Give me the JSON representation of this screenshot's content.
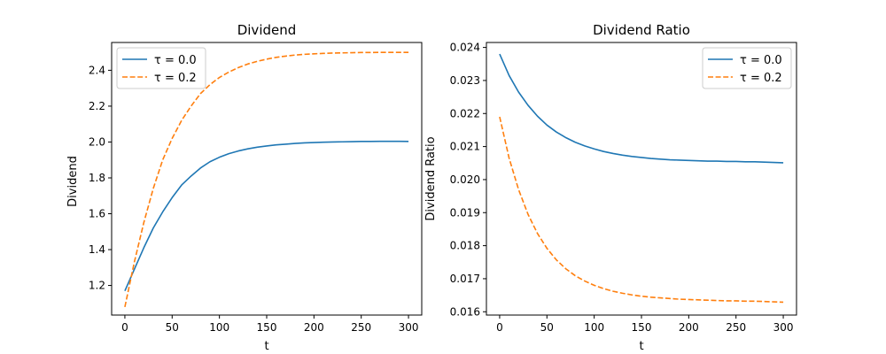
{
  "chart_data": [
    {
      "type": "line",
      "title": "Dividend",
      "xlabel": "t",
      "ylabel": "Dividend",
      "xlim": [
        -14,
        314
      ],
      "ylim": [
        1.035,
        2.555
      ],
      "xticks": [
        0,
        50,
        100,
        150,
        200,
        250,
        300
      ],
      "yticks": [
        1.2,
        1.4,
        1.6,
        1.8,
        2.0,
        2.2,
        2.4
      ],
      "ytick_labels": [
        "1.2",
        "1.4",
        "1.6",
        "1.8",
        "2.0",
        "2.2",
        "2.4"
      ],
      "legend_position": "top-left",
      "grid": false,
      "x": [
        0,
        10,
        20,
        30,
        40,
        50,
        60,
        70,
        80,
        90,
        100,
        110,
        120,
        130,
        140,
        150,
        160,
        170,
        180,
        190,
        200,
        210,
        220,
        230,
        240,
        250,
        260,
        270,
        280,
        290,
        300
      ],
      "series": [
        {
          "name": "τ = 0.0",
          "color": "#1f77b4",
          "dash": "solid",
          "values": [
            1.17,
            1.29,
            1.41,
            1.52,
            1.61,
            1.69,
            1.76,
            1.81,
            1.855,
            1.89,
            1.915,
            1.935,
            1.95,
            1.962,
            1.971,
            1.978,
            1.984,
            1.988,
            1.992,
            1.995,
            1.997,
            1.999,
            2.0,
            2.001,
            2.002,
            2.003,
            2.003,
            2.004,
            2.004,
            2.004,
            2.003
          ]
        },
        {
          "name": "τ = 0.2",
          "color": "#ff7f0e",
          "dash": "dashed",
          "values": [
            1.08,
            1.33,
            1.55,
            1.74,
            1.9,
            2.02,
            2.12,
            2.2,
            2.27,
            2.32,
            2.36,
            2.39,
            2.415,
            2.435,
            2.45,
            2.462,
            2.472,
            2.479,
            2.485,
            2.489,
            2.492,
            2.494,
            2.496,
            2.497,
            2.498,
            2.499,
            2.499,
            2.5,
            2.5,
            2.5,
            2.5
          ]
        }
      ]
    },
    {
      "type": "line",
      "title": "Dividend Ratio",
      "xlabel": "t",
      "ylabel": "Dividend Ratio",
      "xlim": [
        -14,
        314
      ],
      "ylim": [
        0.0159,
        0.02415
      ],
      "xticks": [
        0,
        50,
        100,
        150,
        200,
        250,
        300
      ],
      "yticks": [
        0.016,
        0.017,
        0.018,
        0.019,
        0.02,
        0.021,
        0.022,
        0.023,
        0.024
      ],
      "ytick_labels": [
        "0.016",
        "0.017",
        "0.018",
        "0.019",
        "0.020",
        "0.021",
        "0.022",
        "0.023",
        "0.024"
      ],
      "legend_position": "top-right",
      "grid": false,
      "x": [
        0,
        10,
        20,
        30,
        40,
        50,
        60,
        70,
        80,
        90,
        100,
        110,
        120,
        130,
        140,
        150,
        160,
        170,
        180,
        190,
        200,
        210,
        220,
        230,
        240,
        250,
        260,
        270,
        280,
        290,
        300
      ],
      "series": [
        {
          "name": "τ = 0.0",
          "color": "#1f77b4",
          "dash": "solid",
          "values": [
            0.0238,
            0.02315,
            0.02265,
            0.02225,
            0.02192,
            0.02165,
            0.02144,
            0.02127,
            0.02113,
            0.02102,
            0.02093,
            0.02085,
            0.02079,
            0.02074,
            0.0207,
            0.02067,
            0.02064,
            0.02062,
            0.0206,
            0.02059,
            0.02058,
            0.02057,
            0.02056,
            0.02056,
            0.02055,
            0.02055,
            0.02054,
            0.02054,
            0.02053,
            0.02052,
            0.02051
          ]
        },
        {
          "name": "τ = 0.2",
          "color": "#ff7f0e",
          "dash": "dashed",
          "values": [
            0.0219,
            0.02065,
            0.0197,
            0.01895,
            0.01837,
            0.01792,
            0.01757,
            0.0173,
            0.01709,
            0.01693,
            0.0168,
            0.0167,
            0.01662,
            0.01656,
            0.01651,
            0.01647,
            0.01644,
            0.01642,
            0.0164,
            0.01638,
            0.01637,
            0.01636,
            0.01635,
            0.01634,
            0.01633,
            0.01633,
            0.01632,
            0.01632,
            0.01631,
            0.0163,
            0.01629
          ]
        }
      ]
    }
  ]
}
